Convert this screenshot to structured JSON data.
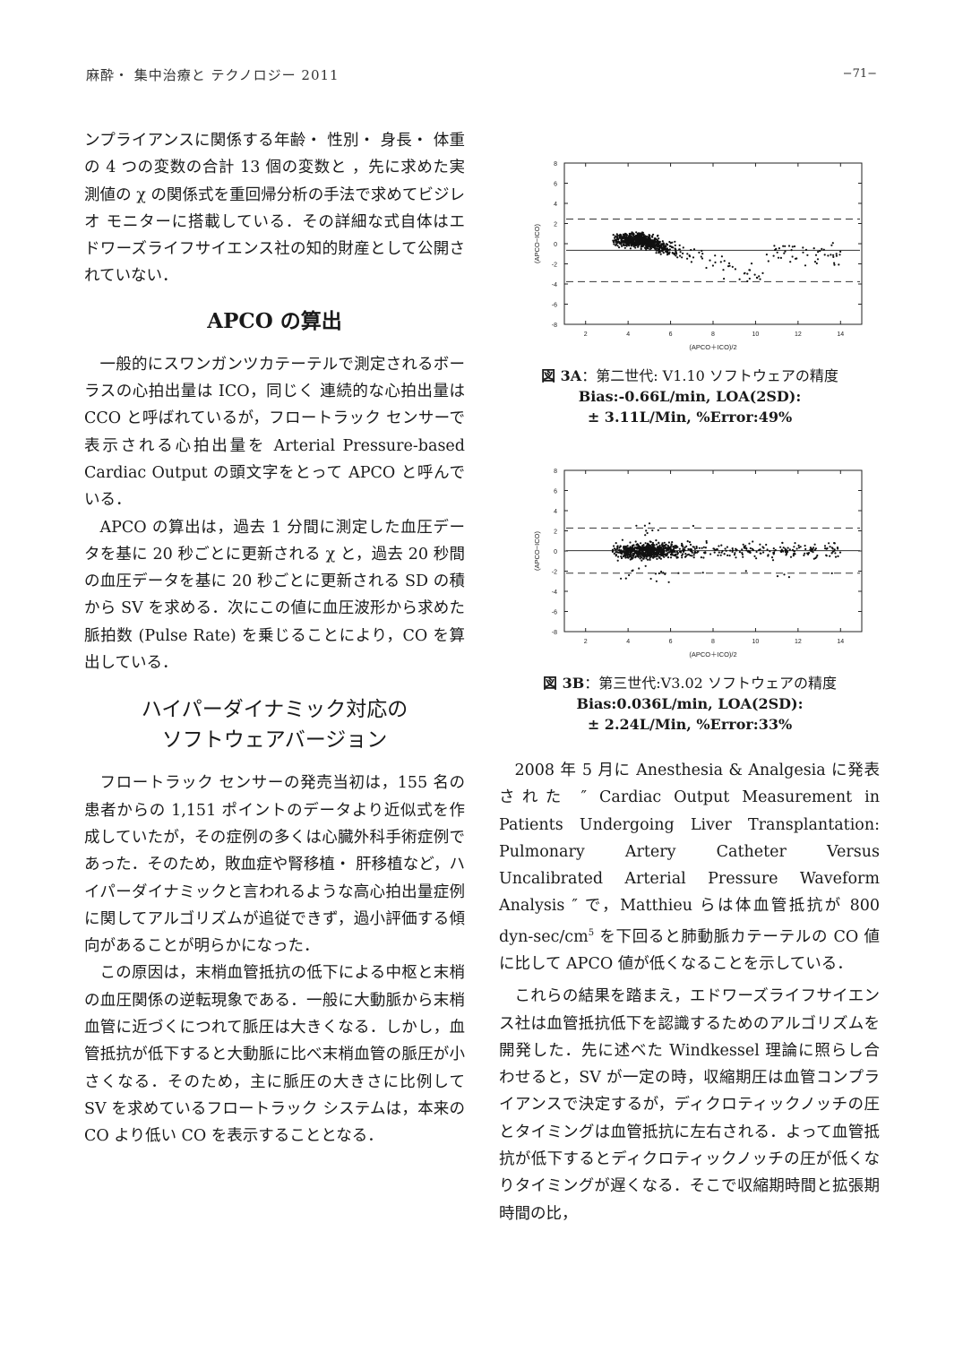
{
  "header": {
    "journal": "麻酔・ 集中治療と テクノロジー 2011",
    "page_number": "−71−"
  },
  "left": {
    "p1": "ンプライアンスに関係する年齢・ 性別・ 身長・ 体重の 4 つの変数の合計 13 個の変数と ，先に求めた実測値の χ の関係式を重回帰分析の手法で求めてビジレオ モニターに搭載している．その詳細な式自体はエドワーズライフサイエンス社の知的財産として公開されていない．",
    "h1": "APCO の算出",
    "p2": "一般的にスワンガンツカテーテルで測定されるボーラスの心拍出量は ICO，同じく 連続的な心拍出量は CCO と呼ばれているが，フロートラック センサーで表示される心拍出量を Arterial Pressure-based Cardiac Output の頭文字をとって APCO と呼んでいる．",
    "p3": "APCO の算出は，過去 1 分間に測定した血圧データを基に 20 秒ごとに更新される χ と，過去 20 秒間の血圧データを基に 20 秒ごとに更新される SD の積から SV を求める．次にこの値に血圧波形から求めた脈拍数 (Pulse Rate) を乗じることにより，CO を算出している．",
    "h2_line1": "ハイパーダイナミック対応の",
    "h2_line2": "ソフトウェアバージョン",
    "p4": "フロートラック センサーの発売当初は，155 名の患者からの 1,151 ポイントのデータより近似式を作成していたが，その症例の多くは心臓外科手術症例であった．そのため，敗血症や腎移植・ 肝移植など，ハイパーダイナミックと言われるような高心拍出量症例に関してアルゴリズムが追従できず，過小評価する傾向があることが明らかになった．",
    "p5": "この原因は，末梢血管抵抗の低下による中枢と末梢の血圧関係の逆転現象である．一般に大動脈から末梢血管に近づくにつれて脈圧は大きくなる．しかし，血管抵抗が低下すると大動脈に比べ末梢血管の脈圧が小さくなる．そのため，主に脈圧の大きさに比例して SV を求めているフロートラック システムは，本来の CO より低い CO を表示することとなる．"
  },
  "right": {
    "p1_a": "2008 年 5 月に Anesthesia & Analgesia に発表された ″ Cardiac Output Measurement in Patients Undergoing Liver Transplantation: Pulmonary Artery Catheter Versus Uncalibrated Arterial Pressure Waveform Analysis ″ で，Matthieu らは体血管抵抗が 800 dyn-sec/cm",
    "p1_sup": "5",
    "p1_b": " を下回ると肺動脈カテーテルの CO 値に比して APCO 値が低くなることを示している．",
    "p2": "これらの結果を踏まえ，エドワーズライフサイエンス社は血管抵抗低下を認識するためのアルゴリズムを開発した．先に述べた Windkessel 理論に照らし合わせると，SV が一定の時，収縮期圧は血管コンプライアンスで決定するが，ディクロティックノッチの圧とタイミングは血管抵抗に左右される．よって血管抵抗が低下するとディクロティックノッチの圧が低くなりタイミングが遅くなる．そこで収縮期時間と拡張期時間の比，"
  },
  "figures": {
    "fig3a": {
      "caption_label": "図 3A",
      "caption_title": "：第二世代: V1.10 ソフトウェアの精度",
      "caption_line2": "Bias:-0.66L/min, LOA(2SD):",
      "caption_line3": "± 3.11L/Min, %Error:49%"
    },
    "fig3b": {
      "caption_label": "図 3B",
      "caption_title": "：第三世代:V3.02 ソフトウェアの精度",
      "caption_line2": "Bias:0.036L/min, LOA(2SD):",
      "caption_line3": "± 2.24L/Min, %Error:33%"
    }
  },
  "chart_data": [
    {
      "type": "scatter",
      "title": "",
      "xlabel": "(APCO＋ICO)/2",
      "ylabel": "(APCO−ICO)",
      "xlim": [
        1,
        15
      ],
      "ylim": [
        -8,
        8
      ],
      "xticks": [
        "2",
        "4",
        "6",
        "8",
        "10",
        "12",
        "14"
      ],
      "yticks": [
        "8",
        "6",
        "4",
        "2",
        "0",
        "-2",
        "-4",
        "-6",
        "-8"
      ],
      "bias": -0.66,
      "loa": [
        2.45,
        -3.77
      ],
      "trend": "points cluster between x=3 and x=10; y≈0 near x=4 decreasing to about -3 near x=9, spread widening",
      "grid": false
    },
    {
      "type": "scatter",
      "title": "",
      "xlabel": "(APCO＋ICO)/2",
      "ylabel": "(APCO−ICO)",
      "xlim": [
        1,
        15
      ],
      "ylim": [
        -8,
        8
      ],
      "xticks": [
        "2",
        "4",
        "6",
        "8",
        "10",
        "12",
        "14"
      ],
      "yticks": [
        "8",
        "6",
        "4",
        "2",
        "0",
        "-2",
        "-4",
        "-6",
        "-8"
      ],
      "bias": 0.036,
      "loa": [
        2.28,
        -2.2
      ],
      "trend": "points centered on y≈0 across x=3 to x=14 with spread within about ±2.5",
      "grid": false
    }
  ]
}
